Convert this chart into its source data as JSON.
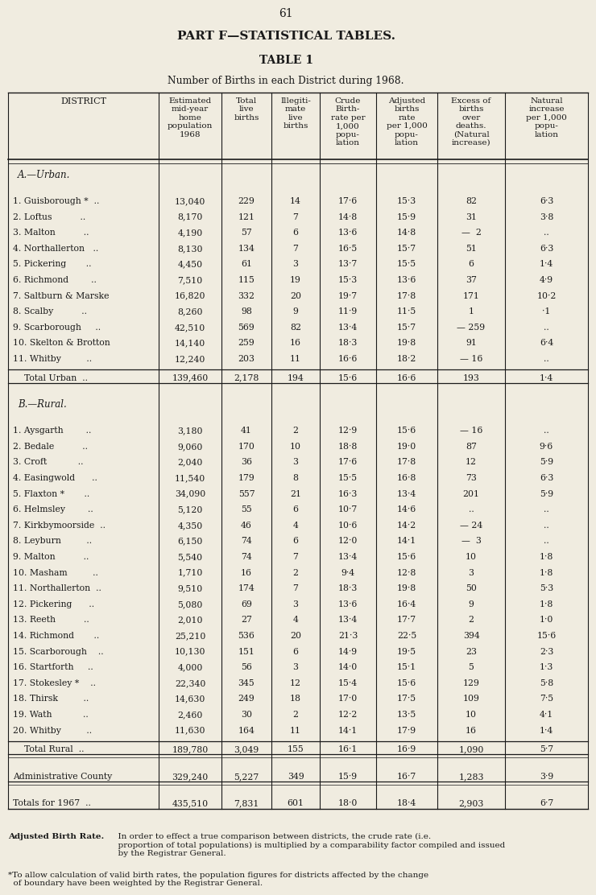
{
  "page_number": "61",
  "part_title": "PART F—STATISTICAL TABLES.",
  "table_title": "TABLE 1",
  "table_subtitle": "Number of Births in each District during 1968.",
  "bg_color": "#f0ece0",
  "text_color": "#1a1a1a",
  "section_a_label": "A.—Urban.",
  "urban_rows": [
    [
      "1. Guisborough *  ..",
      "13,040",
      "229",
      "14",
      "17·6",
      "15·3",
      "82",
      "6·3"
    ],
    [
      "2. Loftus          ..",
      "8,170",
      "121",
      "7",
      "14·8",
      "15·9",
      "31",
      "3·8"
    ],
    [
      "3. Malton          ..",
      "4,190",
      "57",
      "6",
      "13·6",
      "14·8",
      "—  2",
      ".."
    ],
    [
      "4. Northallerton   ..",
      "8,130",
      "134",
      "7",
      "16·5",
      "15·7",
      "51",
      "6·3"
    ],
    [
      "5. Pickering       ..",
      "4,450",
      "61",
      "3",
      "13·7",
      "15·5",
      "6",
      "1·4"
    ],
    [
      "6. Richmond        ..",
      "7,510",
      "115",
      "19",
      "15·3",
      "13·6",
      "37",
      "4·9"
    ],
    [
      "7. Saltburn & Marske",
      "16,820",
      "332",
      "20",
      "19·7",
      "17·8",
      "171",
      "10·2"
    ],
    [
      "8. Scalby          ..",
      "8,260",
      "98",
      "9",
      "11·9",
      "11·5",
      "1",
      "·1"
    ],
    [
      "9. Scarborough     ..",
      "42,510",
      "569",
      "82",
      "13·4",
      "15·7",
      "— 259",
      ".."
    ],
    [
      "10. Skelton & Brotton",
      "14,140",
      "259",
      "16",
      "18·3",
      "19·8",
      "91",
      "6·4"
    ],
    [
      "11. Whitby         ..",
      "12,240",
      "203",
      "11",
      "16·6",
      "18·2",
      "— 16",
      ".."
    ]
  ],
  "urban_total": [
    "    Total Urban  ..",
    "139,460",
    "2,178",
    "194",
    "15·6",
    "16·6",
    "193",
    "1·4"
  ],
  "section_b_label": "B.—Rural.",
  "rural_rows": [
    [
      "1. Aysgarth        ..",
      "3,180",
      "41",
      "2",
      "12·9",
      "15·6",
      "— 16",
      ".."
    ],
    [
      "2. Bedale          ..",
      "9,060",
      "170",
      "10",
      "18·8",
      "19·0",
      "87",
      "9·6"
    ],
    [
      "3. Croft           ..",
      "2,040",
      "36",
      "3",
      "17·6",
      "17·8",
      "12",
      "5·9"
    ],
    [
      "4. Easingwold      ..",
      "11,540",
      "179",
      "8",
      "15·5",
      "16·8",
      "73",
      "6·3"
    ],
    [
      "5. Flaxton *       ..",
      "34,090",
      "557",
      "21",
      "16·3",
      "13·4",
      "201",
      "5·9"
    ],
    [
      "6. Helmsley        ..",
      "5,120",
      "55",
      "6",
      "10·7",
      "14·6",
      "..",
      ".."
    ],
    [
      "7. Kirkbymoorside  ..",
      "4,350",
      "46",
      "4",
      "10·6",
      "14·2",
      "— 24",
      ".."
    ],
    [
      "8. Leyburn         ..",
      "6,150",
      "74",
      "6",
      "12·0",
      "14·1",
      "—  3",
      ".."
    ],
    [
      "9. Malton          ..",
      "5,540",
      "74",
      "7",
      "13·4",
      "15·6",
      "10",
      "1·8"
    ],
    [
      "10. Masham         ..",
      "1,710",
      "16",
      "2",
      "9·4",
      "12·8",
      "3",
      "1·8"
    ],
    [
      "11. Northallerton  ..",
      "9,510",
      "174",
      "7",
      "18·3",
      "19·8",
      "50",
      "5·3"
    ],
    [
      "12. Pickering      ..",
      "5,080",
      "69",
      "3",
      "13·6",
      "16·4",
      "9",
      "1·8"
    ],
    [
      "13. Reeth          ..",
      "2,010",
      "27",
      "4",
      "13·4",
      "17·7",
      "2",
      "1·0"
    ],
    [
      "14. Richmond       ..",
      "25,210",
      "536",
      "20",
      "21·3",
      "22·5",
      "394",
      "15·6"
    ],
    [
      "15. Scarborough    ..",
      "10,130",
      "151",
      "6",
      "14·9",
      "19·5",
      "23",
      "2·3"
    ],
    [
      "16. Startforth     ..",
      "4,000",
      "56",
      "3",
      "14·0",
      "15·1",
      "5",
      "1·3"
    ],
    [
      "17. Stokesley *    ..",
      "22,340",
      "345",
      "12",
      "15·4",
      "15·6",
      "129",
      "5·8"
    ],
    [
      "18. Thirsk         ..",
      "14,630",
      "249",
      "18",
      "17·0",
      "17·5",
      "109",
      "7·5"
    ],
    [
      "19. Wath           ..",
      "2,460",
      "30",
      "2",
      "12·2",
      "13·5",
      "10",
      "4·1"
    ],
    [
      "20. Whitby         ..",
      "11,630",
      "164",
      "11",
      "14·1",
      "17·9",
      "16",
      "1·4"
    ]
  ],
  "rural_total": [
    "    Total Rural  ..",
    "189,780",
    "3,049",
    "155",
    "16·1",
    "16·9",
    "1,090",
    "5·7"
  ],
  "admin_county": [
    "Administrative County",
    "329,240",
    "5,227",
    "349",
    "15·9",
    "16·7",
    "1,283",
    "3·9"
  ],
  "totals_1967": [
    "Totals for 1967  ..",
    "435,510",
    "7,831",
    "601",
    "18·0",
    "18·4",
    "2,903",
    "6·7"
  ],
  "footnote1_bold": "Adjusted Birth Rate.",
  "footnote1_rest": "  In order to effect a true comparison between districts, the crude rate (i.e.\n  proportion of total populations) is multiplied by a comparability factor compiled and issued\n  by the Registrar General.",
  "footnote2": "*To allow calculation of valid birth rates, the population figures for districts affected by the change\n  of boundary have been weighted by the Registrar General."
}
